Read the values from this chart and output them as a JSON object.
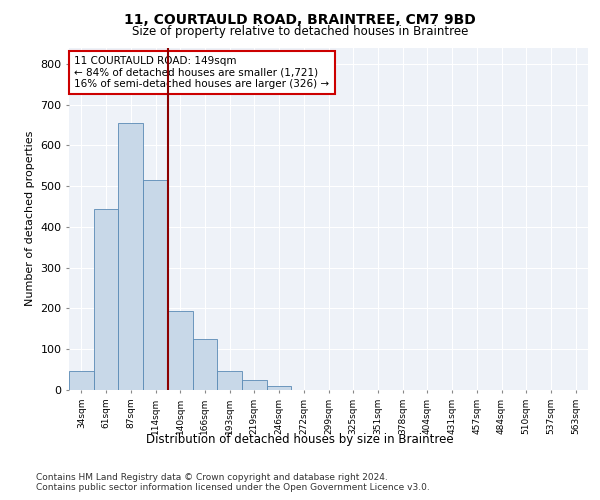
{
  "title1": "11, COURTAULD ROAD, BRAINTREE, CM7 9BD",
  "title2": "Size of property relative to detached houses in Braintree",
  "xlabel": "Distribution of detached houses by size in Braintree",
  "ylabel": "Number of detached properties",
  "bar_labels": [
    "34sqm",
    "61sqm",
    "87sqm",
    "114sqm",
    "140sqm",
    "166sqm",
    "193sqm",
    "219sqm",
    "246sqm",
    "272sqm",
    "299sqm",
    "325sqm",
    "351sqm",
    "378sqm",
    "404sqm",
    "431sqm",
    "457sqm",
    "484sqm",
    "510sqm",
    "537sqm",
    "563sqm"
  ],
  "bar_values": [
    47,
    443,
    656,
    516,
    193,
    125,
    47,
    24,
    10,
    0,
    0,
    0,
    0,
    0,
    0,
    0,
    0,
    0,
    0,
    0,
    0
  ],
  "bar_color": "#c8d8e8",
  "bar_edge_color": "#5a8ab5",
  "vline_color": "#8b0000",
  "annotation_text": "11 COURTAULD ROAD: 149sqm\n← 84% of detached houses are smaller (1,721)\n16% of semi-detached houses are larger (326) →",
  "annotation_box_color": "white",
  "annotation_box_edge": "#cc0000",
  "ylim": [
    0,
    840
  ],
  "yticks": [
    0,
    100,
    200,
    300,
    400,
    500,
    600,
    700,
    800
  ],
  "footer": "Contains HM Land Registry data © Crown copyright and database right 2024.\nContains public sector information licensed under the Open Government Licence v3.0.",
  "background_color": "#eef2f8",
  "grid_color": "white"
}
